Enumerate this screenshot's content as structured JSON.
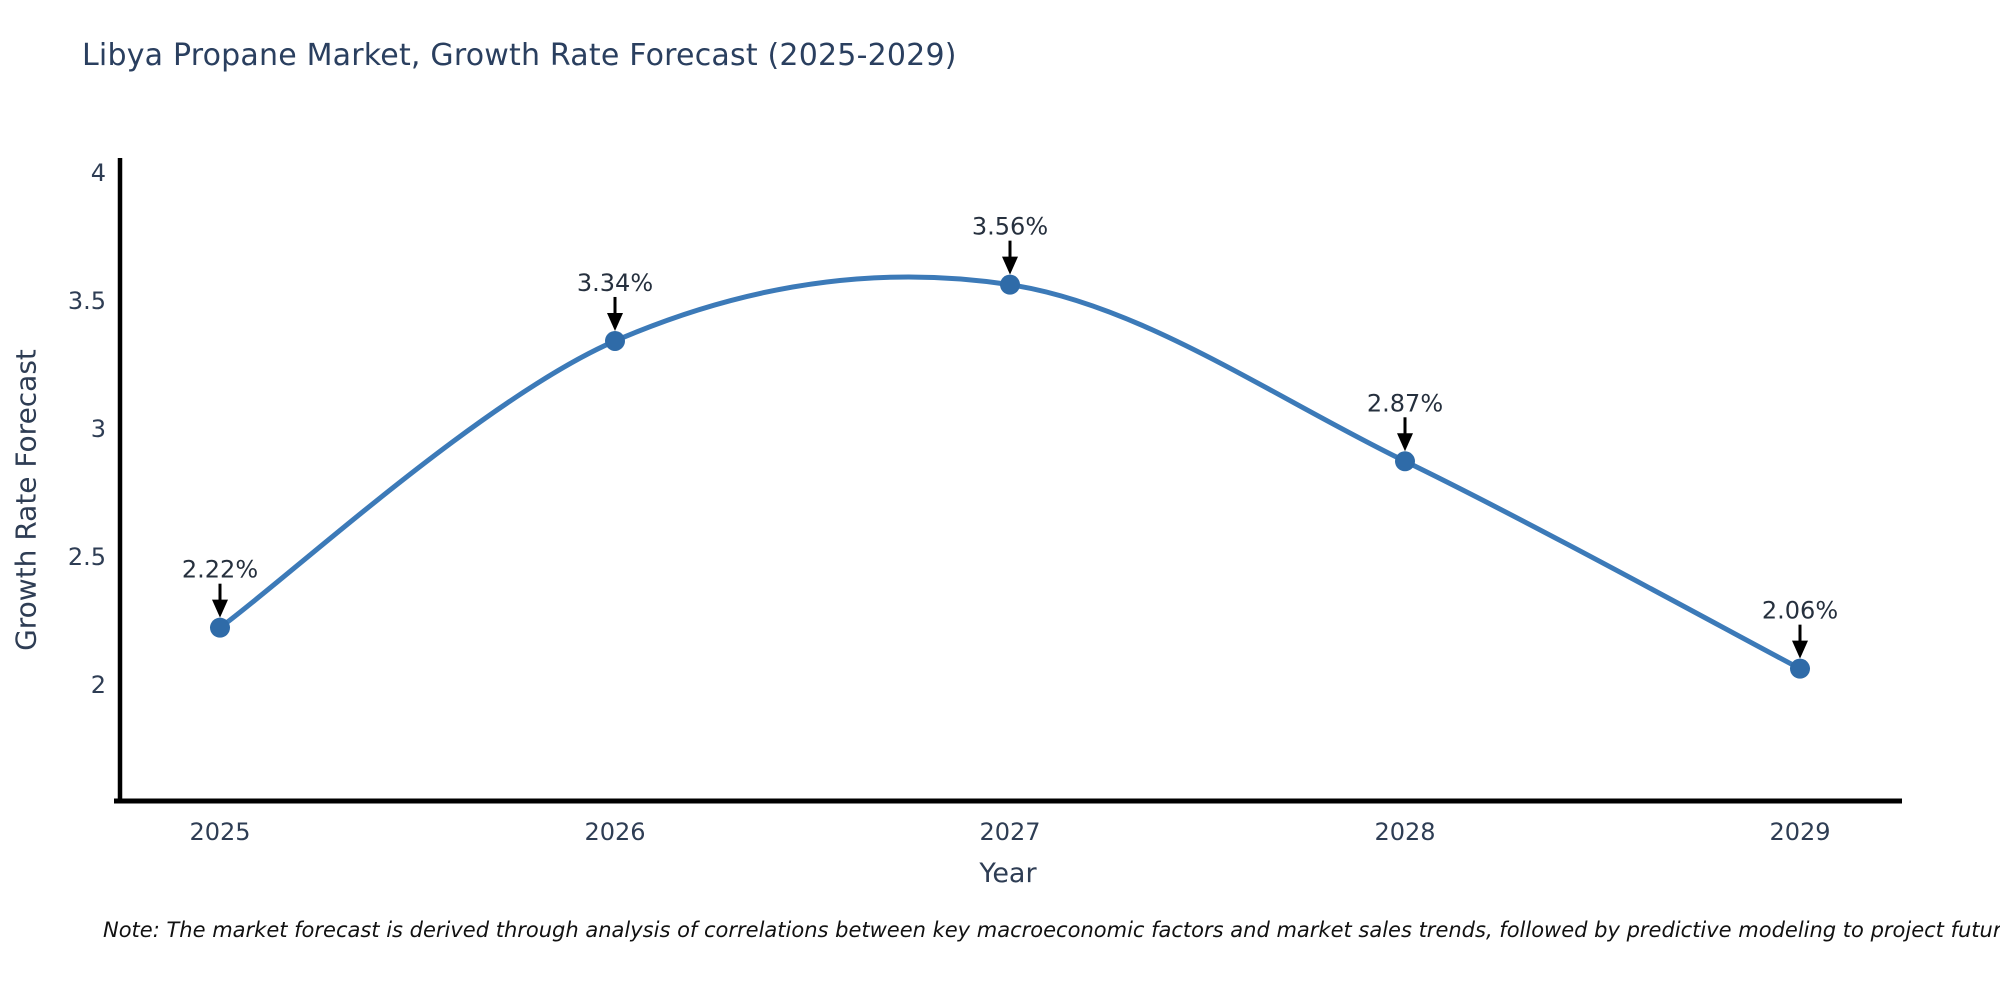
{
  "title": {
    "text": "Libya Propane Market, Growth Rate Forecast (2025-2029)",
    "color": "#2a3f5f"
  },
  "note": {
    "text": "Note: The market forecast is derived through analysis of correlations between key macroeconomic factors and market sales trends, followed by predictive modeling to project future sales"
  },
  "chart_data": {
    "type": "line",
    "title": "Libya Propane Market, Growth Rate Forecast (2025-2029)",
    "xlabel": "Year",
    "ylabel": "Growth Rate Forecast",
    "categories": [
      "2025",
      "2026",
      "2027",
      "2028",
      "2029"
    ],
    "values": [
      2.22,
      3.34,
      3.56,
      2.87,
      2.06
    ],
    "point_labels": [
      "2.22%",
      "3.34%",
      "3.56%",
      "2.87%",
      "2.06%"
    ],
    "yticks": [
      2,
      2.5,
      3,
      3.5,
      4
    ],
    "ylim": [
      1.53,
      4.05
    ],
    "line_shape": "spline",
    "grid": false,
    "legend_position": "none",
    "colors": {
      "line": "#3c7ab8",
      "marker": "#2f6ba8",
      "axis": "#000000",
      "tick_label": "#2e3d54",
      "annotation_text": "#26303e",
      "annotation_arrow": "#000000",
      "background": "#ffffff"
    }
  }
}
